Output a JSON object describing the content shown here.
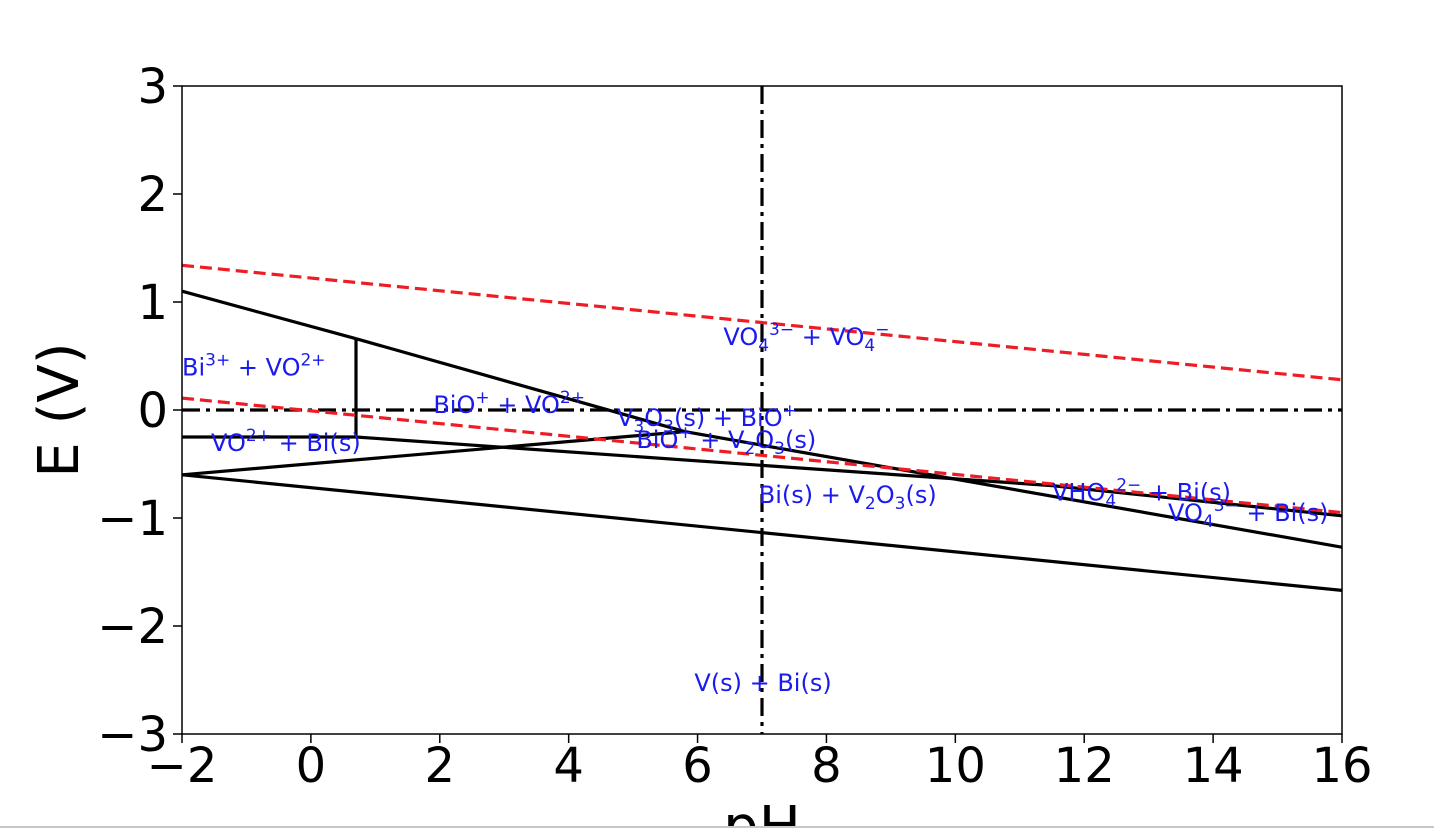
{
  "chart_data": {
    "type": "line",
    "title": "",
    "xlabel": "pH",
    "ylabel": "E (V)",
    "xlim": [
      -2,
      16
    ],
    "ylim": [
      -3,
      3
    ],
    "x_ticks": [
      -2,
      0,
      2,
      4,
      6,
      8,
      10,
      12,
      14,
      16
    ],
    "y_ticks": [
      -3,
      -2,
      -1,
      0,
      1,
      2,
      3
    ],
    "x_tick_labels": [
      "−2",
      "0",
      "2",
      "4",
      "6",
      "8",
      "10",
      "12",
      "14",
      "16"
    ],
    "y_tick_labels": [
      "−3",
      "−2",
      "−1",
      "0",
      "1",
      "2",
      "3"
    ],
    "grid": false,
    "boundaries": [
      {
        "style": "solid",
        "color": "#000000",
        "points": [
          [
            -2,
            1.1
          ],
          [
            0.7,
            0.66
          ]
        ]
      },
      {
        "style": "solid",
        "color": "#000000",
        "points": [
          [
            0.7,
            0.66
          ],
          [
            5.8,
            -0.2
          ],
          [
            16,
            -1.27
          ]
        ]
      },
      {
        "style": "solid",
        "color": "#000000",
        "points": [
          [
            0.7,
            0.66
          ],
          [
            0.7,
            -0.25
          ]
        ]
      },
      {
        "style": "solid",
        "color": "#000000",
        "points": [
          [
            -2,
            -0.25
          ],
          [
            0.7,
            -0.25
          ],
          [
            11.5,
            -0.7
          ],
          [
            16,
            -0.98
          ]
        ]
      },
      {
        "style": "solid",
        "color": "#000000",
        "points": [
          [
            -2,
            -0.6
          ],
          [
            5.8,
            -0.2
          ]
        ]
      },
      {
        "style": "solid",
        "color": "#000000",
        "points": [
          [
            -2,
            -0.6
          ],
          [
            16,
            -1.67
          ]
        ]
      },
      {
        "style": "dash-dot",
        "color": "#000000",
        "points": [
          [
            -2,
            0
          ],
          [
            16,
            0
          ]
        ]
      },
      {
        "style": "dash-dot",
        "color": "#000000",
        "points": [
          [
            7,
            3
          ],
          [
            7,
            -3
          ]
        ]
      },
      {
        "style": "dashed",
        "color": "#ee1c25",
        "points": [
          [
            -2,
            1.34
          ],
          [
            16,
            0.28
          ]
        ]
      },
      {
        "style": "dashed",
        "color": "#ee1c25",
        "points": [
          [
            -2,
            0.11
          ],
          [
            16,
            -0.95
          ]
        ]
      }
    ],
    "regions": [
      {
        "label": "VO₄³⁻ + VO₄⁻",
        "parts": [
          [
            "VO",
            ""
          ],
          [
            "4",
            "sub"
          ],
          [
            "3−",
            "sup"
          ],
          [
            " + VO",
            ""
          ],
          [
            "4",
            "sub"
          ],
          [
            "−",
            "sup"
          ]
        ],
        "x": 6.4,
        "y": 0.6
      },
      {
        "label": "Bi³⁺ + VO²⁺",
        "parts": [
          [
            "Bi",
            ""
          ],
          [
            "3+",
            "sup"
          ],
          [
            " + VO",
            ""
          ],
          [
            "2+",
            "sup"
          ]
        ],
        "x": -2,
        "y": 0.32
      },
      {
        "label": "BiO⁺ + VO²⁺",
        "parts": [
          [
            "BiO",
            ""
          ],
          [
            "+",
            "sup"
          ],
          [
            " + VO",
            ""
          ],
          [
            "2+",
            "sup"
          ]
        ],
        "x": 1.9,
        "y": -0.03
      },
      {
        "label": "V₃O₃(s) + BiO⁺",
        "parts": [
          [
            "V",
            ""
          ],
          [
            "3",
            "sub"
          ],
          [
            "O",
            ""
          ],
          [
            "3",
            "sub"
          ],
          [
            "(s) + BiO",
            ""
          ],
          [
            "+",
            "sup"
          ]
        ],
        "x": 4.75,
        "y": -0.15
      },
      {
        "label": "BiO⁺ + V₂O₃(s)",
        "parts": [
          [
            "BiO",
            ""
          ],
          [
            "+",
            "sup"
          ],
          [
            " + V",
            ""
          ],
          [
            "2",
            "sub"
          ],
          [
            "O",
            ""
          ],
          [
            "3",
            "sub"
          ],
          [
            "(s)",
            ""
          ]
        ],
        "x": 5.05,
        "y": -0.35
      },
      {
        "label": "VO²⁺ + Bi(s)",
        "parts": [
          [
            "VO",
            ""
          ],
          [
            "2+",
            "sup"
          ],
          [
            " + Bi(s)",
            ""
          ]
        ],
        "x": -1.55,
        "y": -0.38
      },
      {
        "label": "Bi(s) + V₂O₃(s)",
        "parts": [
          [
            "Bi(s) + V",
            ""
          ],
          [
            "2",
            "sub"
          ],
          [
            "O",
            ""
          ],
          [
            "3",
            "sub"
          ],
          [
            "(s)",
            ""
          ]
        ],
        "x": 6.95,
        "y": -0.86
      },
      {
        "label": "VHO₄²⁻ + Bi(s)",
        "parts": [
          [
            "VHO",
            ""
          ],
          [
            "4",
            "sub"
          ],
          [
            "2−",
            "sup"
          ],
          [
            " + Bi(s)",
            ""
          ]
        ],
        "x": 11.5,
        "y": -0.84
      },
      {
        "label": "VO₄³⁻ + Bi(s)",
        "parts": [
          [
            "VO",
            ""
          ],
          [
            "4",
            "sub"
          ],
          [
            "3−",
            "sup"
          ],
          [
            " + Bi(s)",
            ""
          ]
        ],
        "x": 13.3,
        "y": -1.03
      },
      {
        "label": "V(s) + Bi(s)",
        "parts": [
          [
            "V(s) + Bi(s)",
            ""
          ]
        ],
        "x": 5.95,
        "y": -2.6
      }
    ]
  }
}
